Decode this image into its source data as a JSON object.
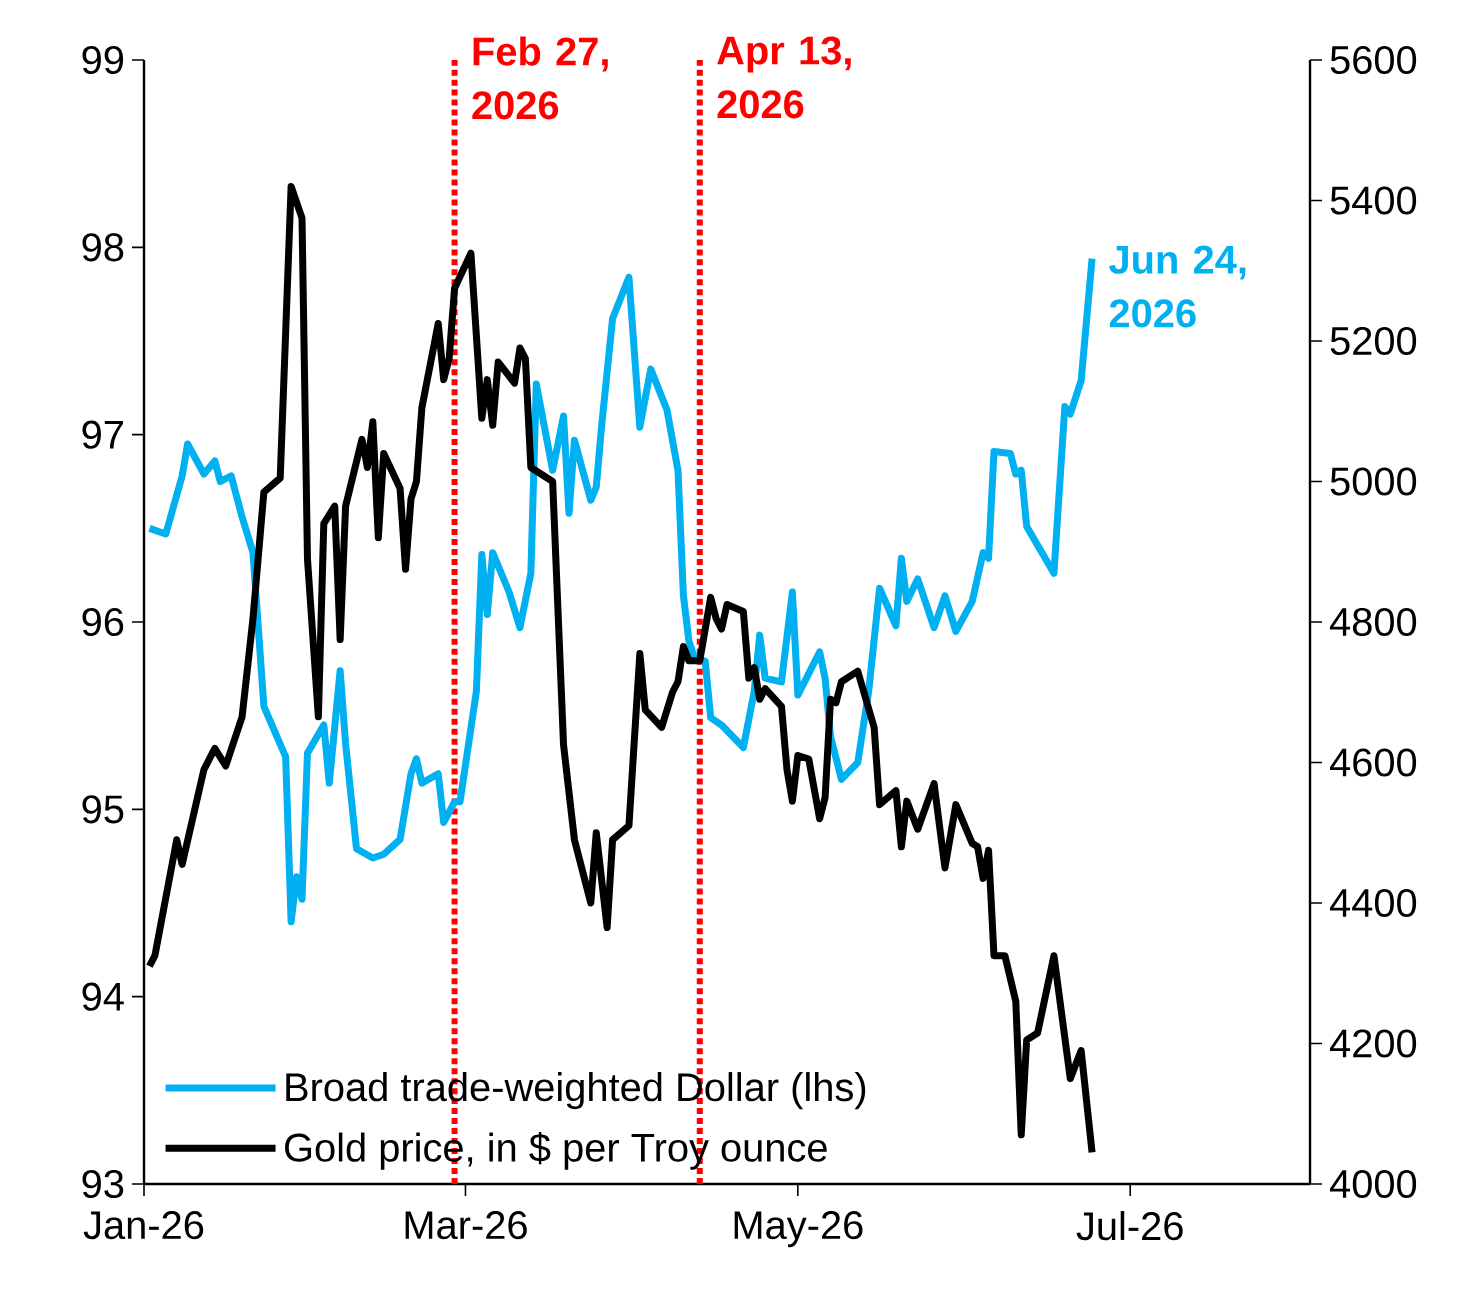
{
  "chart_data": {
    "type": "line",
    "xlim": [
      "2026-01-01",
      "2026-08-03"
    ],
    "xticks": [
      {
        "value": "2026-01-01",
        "label": "Jan-26"
      },
      {
        "value": "2026-03-01",
        "label": "Mar-26"
      },
      {
        "value": "2026-05-01",
        "label": "May-26"
      },
      {
        "value": "2026-07-01",
        "label": "Jul-26"
      }
    ],
    "ylim": [
      93,
      99
    ],
    "yticks": [
      93,
      94,
      95,
      96,
      97,
      98,
      99
    ],
    "y2lim": [
      4000,
      5600
    ],
    "y2ticks": [
      4000,
      4200,
      4400,
      4600,
      4800,
      5000,
      5200,
      5400,
      5600
    ],
    "legend": "bottom left",
    "marker": "none",
    "line_style": "solid",
    "series": [
      {
        "name": "Broad trade-weighted Dollar (lhs)",
        "color": "#00b0f0",
        "axis": "y",
        "x": [
          "2026-01-02",
          "2026-01-05",
          "2026-01-08",
          "2026-01-09",
          "2026-01-12",
          "2026-01-14",
          "2026-01-15",
          "2026-01-17",
          "2026-01-19",
          "2026-01-21",
          "2026-01-23",
          "2026-01-27",
          "2026-01-28",
          "2026-01-29",
          "2026-01-30",
          "2026-01-31",
          "2026-02-03",
          "2026-02-04",
          "2026-02-06",
          "2026-02-07",
          "2026-02-09",
          "2026-02-12",
          "2026-02-14",
          "2026-02-17",
          "2026-02-19",
          "2026-02-20",
          "2026-02-21",
          "2026-02-24",
          "2026-02-25",
          "2026-02-27",
          "2026-02-28",
          "2026-03-03",
          "2026-03-04",
          "2026-03-05",
          "2026-03-06",
          "2026-03-09",
          "2026-03-11",
          "2026-03-13",
          "2026-03-14",
          "2026-03-17",
          "2026-03-19",
          "2026-03-20",
          "2026-03-21",
          "2026-03-24",
          "2026-03-25",
          "2026-03-26",
          "2026-03-28",
          "2026-03-31",
          "2026-04-02",
          "2026-04-04",
          "2026-04-07",
          "2026-04-09",
          "2026-04-10",
          "2026-04-11",
          "2026-04-12",
          "2026-04-14",
          "2026-04-15",
          "2026-04-17",
          "2026-04-21",
          "2026-04-23",
          "2026-04-24",
          "2026-04-25",
          "2026-04-28",
          "2026-04-30",
          "2026-05-01",
          "2026-05-05",
          "2026-05-06",
          "2026-05-07",
          "2026-05-09",
          "2026-05-12",
          "2026-05-14",
          "2026-05-16",
          "2026-05-19",
          "2026-05-20",
          "2026-05-21",
          "2026-05-23",
          "2026-05-26",
          "2026-05-28",
          "2026-05-30",
          "2026-06-02",
          "2026-06-04",
          "2026-06-05",
          "2026-06-06",
          "2026-06-09",
          "2026-06-10",
          "2026-06-11",
          "2026-06-12",
          "2026-06-17",
          "2026-06-19",
          "2026-06-20",
          "2026-06-22",
          "2026-06-24"
        ],
        "values": [
          96.5,
          96.47,
          96.78,
          96.95,
          96.79,
          96.86,
          96.75,
          96.78,
          96.56,
          96.37,
          95.55,
          95.28,
          94.4,
          94.64,
          94.52,
          95.3,
          95.45,
          95.14,
          95.74,
          95.35,
          94.79,
          94.74,
          94.76,
          94.84,
          95.19,
          95.27,
          95.14,
          95.19,
          94.93,
          95.04,
          95.04,
          95.63,
          96.36,
          96.04,
          96.37,
          96.16,
          95.97,
          96.26,
          97.27,
          96.81,
          97.1,
          96.58,
          96.97,
          96.65,
          96.72,
          97.05,
          97.62,
          97.84,
          97.04,
          97.35,
          97.13,
          96.81,
          96.14,
          95.9,
          95.81,
          95.79,
          95.49,
          95.45,
          95.33,
          95.63,
          95.93,
          95.7,
          95.68,
          96.16,
          95.61,
          95.84,
          95.7,
          95.39,
          95.16,
          95.25,
          95.63,
          96.18,
          95.98,
          96.34,
          96.11,
          96.23,
          95.97,
          96.14,
          95.95,
          96.11,
          96.37,
          96.34,
          96.91,
          96.9,
          96.79,
          96.81,
          96.51,
          96.26,
          97.15,
          97.11,
          97.29,
          97.94
        ]
      },
      {
        "name": "Gold price, in $ per Troy ounce",
        "color": "#000000",
        "axis": "y2",
        "x": [
          "2026-01-02",
          "2026-01-03",
          "2026-01-07",
          "2026-01-08",
          "2026-01-12",
          "2026-01-14",
          "2026-01-16",
          "2026-01-19",
          "2026-01-21",
          "2026-01-23",
          "2026-01-26",
          "2026-01-28",
          "2026-01-30",
          "2026-01-31",
          "2026-02-02",
          "2026-02-03",
          "2026-02-05",
          "2026-02-06",
          "2026-02-07",
          "2026-02-10",
          "2026-02-11",
          "2026-02-12",
          "2026-02-13",
          "2026-02-14",
          "2026-02-17",
          "2026-02-18",
          "2026-02-19",
          "2026-02-20",
          "2026-02-21",
          "2026-02-24",
          "2026-02-25",
          "2026-02-26",
          "2026-02-27",
          "2026-03-02",
          "2026-03-04",
          "2026-03-05",
          "2026-03-06",
          "2026-03-07",
          "2026-03-10",
          "2026-03-11",
          "2026-03-12",
          "2026-03-13",
          "2026-03-17",
          "2026-03-19",
          "2026-03-21",
          "2026-03-24",
          "2026-03-25",
          "2026-03-27",
          "2026-03-28",
          "2026-03-31",
          "2026-04-02",
          "2026-04-03",
          "2026-04-06",
          "2026-04-08",
          "2026-04-09",
          "2026-04-10",
          "2026-04-11",
          "2026-04-13",
          "2026-04-15",
          "2026-04-16",
          "2026-04-17",
          "2026-04-18",
          "2026-04-21",
          "2026-04-22",
          "2026-04-23",
          "2026-04-24",
          "2026-04-25",
          "2026-04-28",
          "2026-04-29",
          "2026-04-30",
          "2026-05-01",
          "2026-05-03",
          "2026-05-05",
          "2026-05-06",
          "2026-05-07",
          "2026-05-08",
          "2026-05-09",
          "2026-05-12",
          "2026-05-15",
          "2026-05-16",
          "2026-05-19",
          "2026-05-20",
          "2026-05-21",
          "2026-05-23",
          "2026-05-26",
          "2026-05-28",
          "2026-05-30",
          "2026-06-02",
          "2026-06-03",
          "2026-06-04",
          "2026-06-05",
          "2026-06-06",
          "2026-06-08",
          "2026-06-10",
          "2026-06-11",
          "2026-06-12",
          "2026-06-14",
          "2026-06-17",
          "2026-06-20",
          "2026-06-22",
          "2026-06-24"
        ],
        "values": [
          4310,
          4325,
          4490,
          4455,
          4590,
          4620,
          4595,
          4665,
          4805,
          4985,
          5005,
          5420,
          5375,
          4890,
          4665,
          4940,
          4965,
          4775,
          4965,
          5060,
          5020,
          5085,
          4920,
          5040,
          4990,
          4875,
          4975,
          5000,
          5105,
          5225,
          5145,
          5175,
          5275,
          5325,
          5090,
          5145,
          5080,
          5170,
          5140,
          5190,
          5175,
          5020,
          5000,
          4625,
          4490,
          4400,
          4500,
          4365,
          4490,
          4510,
          4755,
          4675,
          4650,
          4700,
          4715,
          4765,
          4745,
          4745,
          4835,
          4805,
          4790,
          4825,
          4815,
          4720,
          4735,
          4690,
          4705,
          4680,
          4590,
          4545,
          4610,
          4605,
          4520,
          4550,
          4690,
          4685,
          4715,
          4730,
          4650,
          4540,
          4560,
          4480,
          4545,
          4505,
          4570,
          4450,
          4540,
          4485,
          4480,
          4435,
          4475,
          4325,
          4325,
          4260,
          4070,
          4205,
          4215,
          4325,
          4150,
          4190,
          4045
        ]
      }
    ],
    "ref_lines": [
      {
        "axis": "x",
        "value": "2026-02-27",
        "label": "Feb 27, 2026",
        "color": "#ff0000",
        "line_style": "dotted"
      },
      {
        "axis": "x",
        "value": "2026-04-13",
        "label": "Apr 13, 2026",
        "color": "#ff0000",
        "line_style": "dotted"
      }
    ],
    "annotations": [
      {
        "text": "Jun 24, 2026",
        "x": "2026-06-24",
        "y": 97.94
      }
    ]
  }
}
